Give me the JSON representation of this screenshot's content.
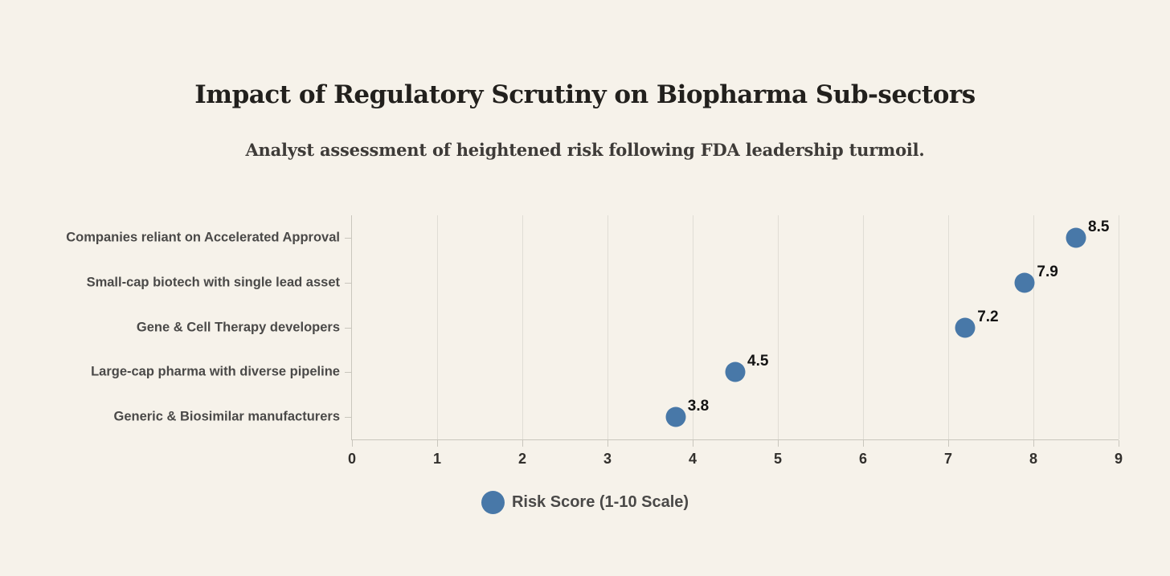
{
  "chart_data": {
    "type": "scatter",
    "orientation": "horizontal-dot-plot",
    "title": "Impact of Regulatory Scrutiny on Biopharma Sub-sectors",
    "subtitle": "Analyst assessment of heightened risk following FDA leadership turmoil.",
    "categories": [
      "Companies reliant on Accelerated Approval",
      "Small-cap biotech with single lead asset",
      "Gene & Cell Therapy developers",
      "Large-cap pharma with diverse pipeline",
      "Generic & Biosimilar manufacturers"
    ],
    "values": [
      8.5,
      7.9,
      7.2,
      4.5,
      3.8
    ],
    "value_labels": [
      "8.5",
      "7.9",
      "7.2",
      "4.5",
      "3.8"
    ],
    "xlabel": "",
    "ylabel": "",
    "xlim": [
      0,
      9
    ],
    "x_ticks": [
      0,
      1,
      2,
      3,
      4,
      5,
      6,
      7,
      8,
      9
    ],
    "grid": "vertical",
    "legend": {
      "label": "Risk Score (1-10 Scale)",
      "position": "bottom-center"
    },
    "colors": {
      "marker": "#4878a8",
      "background": "#f6f2ea",
      "gridline": "#e0ddd5",
      "axis": "#c9c6bd",
      "title_text": "#22201d",
      "subtitle_text": "#3e3b38",
      "category_text": "#4a4948",
      "value_text": "#131313",
      "tick_text": "#32302d"
    }
  }
}
